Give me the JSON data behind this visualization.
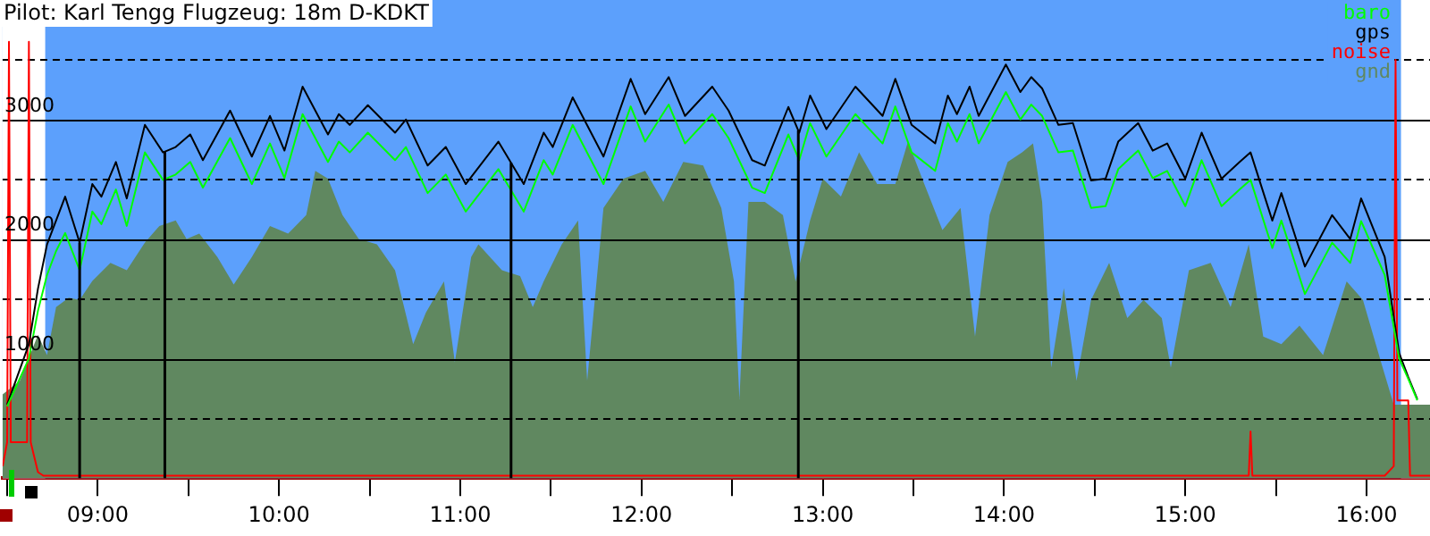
{
  "chart_data": {
    "type": "line",
    "title": "Pilot: Karl Tengg Flugzeug: 18m D-KDKT",
    "x": [
      8.5,
      8.62,
      8.67,
      8.72,
      8.77,
      8.82,
      8.9,
      8.97,
      9.02,
      9.1,
      9.16,
      9.26,
      9.36,
      9.43,
      9.51,
      9.58,
      9.73,
      9.85,
      9.95,
      10.03,
      10.13,
      10.27,
      10.33,
      10.39,
      10.49,
      10.64,
      10.7,
      10.82,
      10.92,
      11.03,
      11.21,
      11.35,
      11.46,
      11.51,
      11.62,
      11.79,
      11.94,
      12.02,
      12.15,
      12.24,
      12.39,
      12.48,
      12.61,
      12.68,
      12.81,
      12.87,
      12.93,
      13.02,
      13.18,
      13.33,
      13.4,
      13.49,
      13.62,
      13.69,
      13.74,
      13.81,
      13.86,
      14.01,
      14.09,
      14.15,
      14.21,
      14.3,
      14.38,
      14.48,
      14.56,
      14.63,
      14.74,
      14.82,
      14.9,
      15.0,
      15.09,
      15.2,
      15.3,
      15.36,
      15.48,
      15.53,
      15.66,
      15.81,
      15.91,
      15.97,
      16.1,
      16.18,
      16.23,
      16.28
    ],
    "series": [
      {
        "name": "baro",
        "color": "#00ff00",
        "values": [
          600,
          1000,
          1400,
          1700,
          1900,
          2050,
          1740,
          2230,
          2125,
          2415,
          2110,
          2725,
          2495,
          2540,
          2645,
          2430,
          2845,
          2460,
          2800,
          2510,
          3045,
          2645,
          2815,
          2725,
          2890,
          2660,
          2770,
          2385,
          2540,
          2230,
          2585,
          2230,
          2660,
          2540,
          2955,
          2460,
          3110,
          2815,
          3125,
          2800,
          3045,
          2845,
          2430,
          2385,
          2875,
          2660,
          2970,
          2690,
          3045,
          2800,
          3110,
          2725,
          2570,
          2970,
          2815,
          3045,
          2800,
          3230,
          3000,
          3125,
          3030,
          2725,
          2740,
          2260,
          2275,
          2585,
          2740,
          2510,
          2570,
          2275,
          2660,
          2275,
          2415,
          2495,
          1925,
          2155,
          1540,
          1970,
          1800,
          2150,
          1700,
          1000,
          830,
          650
        ]
      },
      {
        "name": "gps",
        "color": "#000000",
        "values": [
          615,
          1120,
          1585,
          1955,
          2155,
          2355,
          1970,
          2460,
          2355,
          2645,
          2340,
          2955,
          2725,
          2770,
          2875,
          2660,
          3075,
          2690,
          3030,
          2740,
          3275,
          2875,
          3045,
          2955,
          3120,
          2890,
          3000,
          2615,
          2770,
          2460,
          2815,
          2460,
          2890,
          2770,
          3185,
          2690,
          3340,
          3045,
          3355,
          3030,
          3275,
          3075,
          2660,
          2615,
          3105,
          2890,
          3200,
          2920,
          3275,
          3030,
          3340,
          2955,
          2800,
          3200,
          3045,
          3275,
          3030,
          3460,
          3230,
          3355,
          3260,
          2955,
          2970,
          2490,
          2505,
          2815,
          2970,
          2740,
          2800,
          2505,
          2890,
          2505,
          2645,
          2725,
          2155,
          2385,
          1770,
          2200,
          2000,
          2340,
          1850,
          1045,
          845,
          660
        ]
      },
      {
        "name": "noise",
        "color": "#ff0000",
        "x": [
          8.475,
          8.5,
          8.51,
          8.52,
          8.61,
          8.62,
          8.63,
          8.67,
          8.7,
          15.35,
          15.36,
          15.37,
          16.1,
          16.15,
          16.16,
          16.17,
          16.23,
          16.24,
          16.35
        ],
        "values": [
          100,
          300,
          3650,
          300,
          300,
          3650,
          300,
          50,
          20,
          20,
          390,
          20,
          20,
          100,
          3500,
          650,
          650,
          20,
          20
        ]
      },
      {
        "name": "gnd",
        "type": "area",
        "color": "#608860",
        "x": [
          8.475,
          8.57,
          8.67,
          8.72,
          8.77,
          8.84,
          8.9,
          8.97,
          9.07,
          9.16,
          9.26,
          9.34,
          9.43,
          9.49,
          9.56,
          9.66,
          9.75,
          9.85,
          9.95,
          10.05,
          10.15,
          10.2,
          10.27,
          10.35,
          10.44,
          10.54,
          10.64,
          10.74,
          10.81,
          10.91,
          10.97,
          11.06,
          11.1,
          11.23,
          11.33,
          11.4,
          11.46,
          11.56,
          11.65,
          11.7,
          11.79,
          11.9,
          12.02,
          12.12,
          12.23,
          12.34,
          12.44,
          12.51,
          12.54,
          12.59,
          12.68,
          12.78,
          12.85,
          12.93,
          13.0,
          13.1,
          13.2,
          13.3,
          13.4,
          13.47,
          13.56,
          13.66,
          13.76,
          13.84,
          13.92,
          14.02,
          14.1,
          14.16,
          14.21,
          14.26,
          14.33,
          14.4,
          14.48,
          14.58,
          14.68,
          14.77,
          14.87,
          14.92,
          15.02,
          15.14,
          15.25,
          15.35,
          15.43,
          15.53,
          15.63,
          15.76,
          15.89,
          15.98,
          16.08,
          16.15,
          16.28,
          16.35
        ],
        "values": [
          700,
          815,
          1200,
          1030,
          1430,
          1510,
          1490,
          1650,
          1800,
          1740,
          1970,
          2110,
          2155,
          2000,
          2045,
          1850,
          1620,
          1850,
          2110,
          2045,
          2200,
          2570,
          2505,
          2200,
          2000,
          1955,
          1740,
          1120,
          1385,
          1645,
          970,
          1850,
          1955,
          1740,
          1690,
          1430,
          1645,
          1955,
          2155,
          815,
          2260,
          2505,
          2570,
          2310,
          2645,
          2615,
          2260,
          1645,
          660,
          2310,
          2310,
          2200,
          1645,
          2155,
          2505,
          2355,
          2725,
          2460,
          2460,
          2815,
          2460,
          2075,
          2260,
          1185,
          2200,
          2645,
          2725,
          2800,
          2310,
          925,
          1590,
          815,
          1490,
          1800,
          1340,
          1490,
          1340,
          925,
          1740,
          1800,
          1430,
          1955,
          1185,
          1120,
          1275,
          1030,
          1645,
          1490,
          970,
          615,
          615,
          615
        ]
      }
    ],
    "xlim": [
      8.475,
      16.35
    ],
    "xticks": [
      {
        "value": 8.5,
        "label": null
      },
      {
        "value": 9,
        "label": "09:00"
      },
      {
        "value": 9.5,
        "label": null
      },
      {
        "value": 10,
        "label": "10:00"
      },
      {
        "value": 10.5,
        "label": null
      },
      {
        "value": 11,
        "label": "11:00"
      },
      {
        "value": 11.5,
        "label": null
      },
      {
        "value": 12,
        "label": "12:00"
      },
      {
        "value": 12.5,
        "label": null
      },
      {
        "value": 13,
        "label": "13:00"
      },
      {
        "value": 13.5,
        "label": null
      },
      {
        "value": 14,
        "label": "14:00"
      },
      {
        "value": 14.5,
        "label": null
      },
      {
        "value": 15,
        "label": "15:00"
      },
      {
        "value": 15.5,
        "label": null
      },
      {
        "value": 16,
        "label": "16:00"
      }
    ],
    "ylim": [
      0,
      4000
    ],
    "yticks": [
      {
        "value": 500,
        "label": null
      },
      1000,
      {
        "value": 1500,
        "label": null
      },
      2000,
      {
        "value": 2500,
        "label": null
      },
      3000,
      {
        "value": 3500,
        "label": null
      }
    ],
    "ref_lines": [
      {
        "axis": "x",
        "value": 8.9,
        "color": "#000000"
      },
      {
        "axis": "x",
        "value": 9.37,
        "color": "#000000"
      },
      {
        "axis": "x",
        "value": 11.28,
        "color": "#000000"
      },
      {
        "axis": "x",
        "value": 12.865,
        "color": "#000000"
      }
    ],
    "bands": [
      {
        "axis": "x",
        "from": 8.475,
        "to": 8.71,
        "color": "#ffffff"
      },
      {
        "axis": "x",
        "from": 16.19,
        "to": 16.35,
        "color": "#ffffff"
      }
    ],
    "grid": "y",
    "legend": "top right",
    "marker": "none"
  }
}
